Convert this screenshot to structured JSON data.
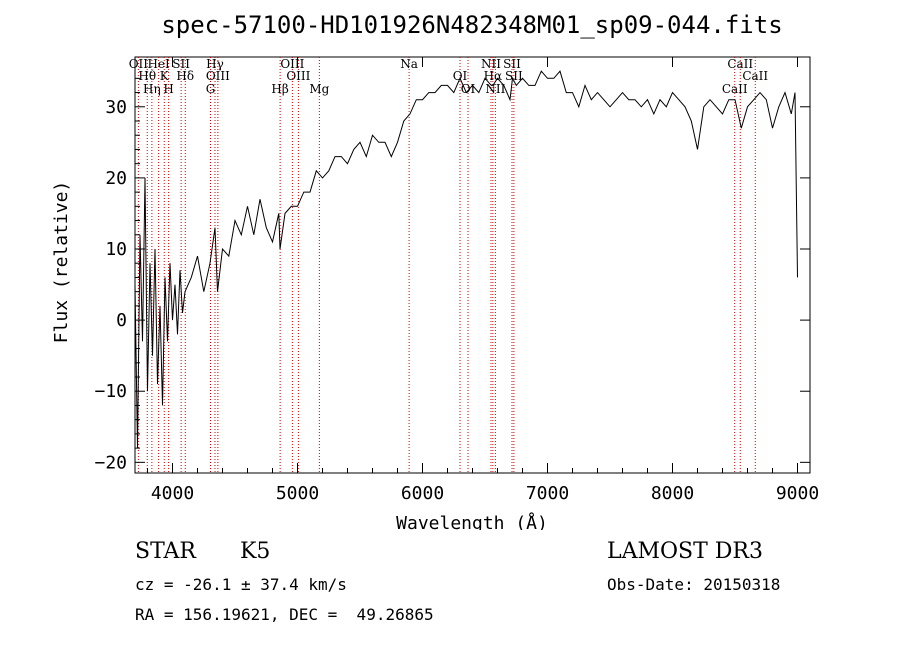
{
  "chart_data": {
    "type": "line",
    "title": "spec-57100-HD101926N482348M01_sp09-044.fits",
    "xlabel": "Wavelength (Å)",
    "ylabel": "Flux (relative)",
    "xlim": [
      3700,
      9100
    ],
    "ylim": [
      -21.5,
      37
    ],
    "xticks": [
      4000,
      5000,
      6000,
      7000,
      8000,
      9000
    ],
    "yticks": [
      -20,
      -10,
      0,
      10,
      20,
      30
    ],
    "series": [
      {
        "name": "spectrum",
        "x": [
          3700,
          3720,
          3740,
          3760,
          3780,
          3800,
          3820,
          3840,
          3860,
          3880,
          3900,
          3920,
          3940,
          3960,
          3980,
          4000,
          4020,
          4040,
          4060,
          4080,
          4100,
          4150,
          4200,
          4250,
          4300,
          4340,
          4360,
          4400,
          4450,
          4500,
          4550,
          4600,
          4650,
          4700,
          4750,
          4800,
          4850,
          4860,
          4900,
          4950,
          5000,
          5050,
          5100,
          5150,
          5200,
          5250,
          5300,
          5350,
          5400,
          5450,
          5500,
          5550,
          5600,
          5650,
          5700,
          5750,
          5800,
          5850,
          5900,
          5950,
          6000,
          6050,
          6100,
          6150,
          6200,
          6250,
          6300,
          6350,
          6400,
          6450,
          6500,
          6550,
          6563,
          6600,
          6650,
          6700,
          6720,
          6750,
          6800,
          6850,
          6900,
          6950,
          7000,
          7050,
          7100,
          7150,
          7200,
          7250,
          7300,
          7350,
          7400,
          7450,
          7500,
          7550,
          7600,
          7650,
          7700,
          7750,
          7800,
          7850,
          7900,
          7950,
          8000,
          8050,
          8100,
          8150,
          8200,
          8250,
          8300,
          8350,
          8400,
          8450,
          8500,
          8550,
          8600,
          8650,
          8700,
          8750,
          8800,
          8850,
          8900,
          8950,
          8980,
          9000
        ],
        "values": [
          5,
          -18,
          12,
          -3,
          20,
          -10,
          8,
          -5,
          10,
          -9,
          2,
          -12,
          6,
          -3,
          8,
          0,
          5,
          -2,
          7,
          1,
          4,
          6,
          9,
          4,
          8,
          13,
          4,
          10,
          9,
          14,
          12,
          16,
          12,
          17,
          13,
          11,
          15,
          10,
          15,
          16,
          16,
          18,
          18,
          21,
          20,
          21,
          23,
          23,
          22,
          24,
          25,
          23,
          26,
          25,
          25,
          23,
          25,
          28,
          29,
          31,
          31,
          32,
          32,
          33,
          33,
          32,
          34,
          32,
          33,
          32,
          34,
          33,
          33,
          34,
          33,
          31,
          34,
          33,
          34,
          33,
          33,
          35,
          34,
          34,
          35,
          32,
          32,
          30,
          33,
          31,
          32,
          31,
          30,
          31,
          32,
          31,
          31,
          30,
          31,
          29,
          31,
          30,
          32,
          31,
          30,
          28,
          24,
          30,
          31,
          30,
          29,
          31,
          31,
          27,
          30,
          31,
          32,
          31,
          27,
          30,
          32,
          29,
          32,
          6
        ]
      }
    ],
    "line_markers": [
      {
        "name": "Hδ",
        "x": 4102,
        "label": "Hδ"
      },
      {
        "name": "K",
        "x": 3934,
        "label": "K"
      },
      {
        "name": "H",
        "x": 3969,
        "label": "H"
      },
      {
        "name": "HeI",
        "x": 3889,
        "label": "HeI"
      },
      {
        "name": "SII",
        "x": 4069,
        "label": "SII"
      },
      {
        "name": "Hθ",
        "x": 3798,
        "label": "Hθ"
      },
      {
        "name": "OII",
        "x": 3727,
        "label": "OII"
      },
      {
        "name": "Hη",
        "x": 3835,
        "label": "Hη"
      },
      {
        "name": "OIII-4363",
        "x": 4363,
        "label": "OIII"
      },
      {
        "name": "Hγ",
        "x": 4340,
        "label": "Hγ"
      },
      {
        "name": "G",
        "x": 4304,
        "label": "G"
      },
      {
        "name": "Hβ",
        "x": 4861,
        "label": "Hβ"
      },
      {
        "name": "OIII-4959",
        "x": 4959,
        "label": "OIII"
      },
      {
        "name": "OIII-5007",
        "x": 5007,
        "label": "OIII"
      },
      {
        "name": "Mg",
        "x": 5175,
        "label": "Mg"
      },
      {
        "name": "Na",
        "x": 5893,
        "label": "Na"
      },
      {
        "name": "OI-6300",
        "x": 6300,
        "label": "OI"
      },
      {
        "name": "OI-6364",
        "x": 6364,
        "label": "OI"
      },
      {
        "name": "Hα",
        "x": 6563,
        "label": "Hα"
      },
      {
        "name": "NII-6548",
        "x": 6548,
        "label": "NII"
      },
      {
        "name": "NII-6583",
        "x": 6583,
        "label": "NII"
      },
      {
        "name": "SII-6716",
        "x": 6716,
        "label": "SII"
      },
      {
        "name": "SII-6731",
        "x": 6731,
        "label": "SII"
      },
      {
        "name": "CaII-8498",
        "x": 8498,
        "label": "CaII"
      },
      {
        "name": "CaII-8542",
        "x": 8542,
        "label": "CaII"
      },
      {
        "name": "CaII-8662",
        "x": 8662,
        "label": "CaII"
      }
    ]
  },
  "footer": {
    "class_label": "STAR",
    "subclass": "K5",
    "survey": "LAMOST DR3",
    "cz_text": "cz = -26.1 ± 37.4 km/s",
    "obs_date_text": "Obs-Date: 20150318",
    "radec_text": "RA = 156.19621, DEC =  49.26865"
  },
  "colors": {
    "spectrum": "#000000",
    "marker": "#cc0000",
    "axis": "#000000"
  }
}
